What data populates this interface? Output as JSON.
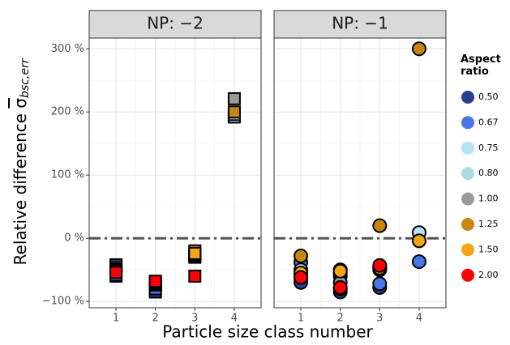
{
  "chart_data": [
    {
      "type": "scatter",
      "title": "NP: −2",
      "marker": "square",
      "xlabel": "Particle size class number",
      "ylabel": "Relative difference ",
      "ylabel_symbol": "σ",
      "ylabel_subscript": "bsc,err",
      "legend_title": "Aspect ratio",
      "legend": "right",
      "x": [
        1,
        2,
        3,
        4
      ],
      "xlim": [
        0.32,
        4.68
      ],
      "xticks": [
        1,
        2,
        3,
        4
      ],
      "ylim": [
        -110,
        317
      ],
      "yticks": [
        {
          "value": -100,
          "label": "−100 %"
        },
        {
          "value": 0,
          "label": "0 %"
        },
        {
          "value": 100,
          "label": "100 %"
        },
        {
          "value": 200,
          "label": "200 %"
        },
        {
          "value": 300,
          "label": "300 %"
        }
      ],
      "reference_line": 0,
      "grid": true,
      "series": [
        {
          "name": "0.50",
          "color": "#2b3f8f",
          "values": [
            -60,
            -85,
            -30,
            null
          ]
        },
        {
          "name": "0.67",
          "color": "#4a74e8",
          "values": [
            -58,
            -80,
            -28,
            null
          ]
        },
        {
          "name": "0.75",
          "color": "#b9e0f7",
          "values": [
            -42,
            -70,
            -28,
            192
          ]
        },
        {
          "name": "0.80",
          "color": "#a9dbe3",
          "values": [
            -45,
            -72,
            -27,
            196
          ]
        },
        {
          "name": "1.00",
          "color": "#999999",
          "values": [
            -48,
            -74,
            -26,
            221
          ]
        },
        {
          "name": "1.25",
          "color": "#c8860f",
          "values": [
            -50,
            -72,
            -20,
            200
          ]
        },
        {
          "name": "1.50",
          "color": "#f5a516",
          "values": [
            -52,
            -70,
            -24,
            null
          ]
        },
        {
          "name": "2.00",
          "color": "#ff0000",
          "values": [
            -54,
            -68,
            -60,
            null
          ]
        }
      ]
    },
    {
      "type": "scatter",
      "title": "NP: −1",
      "marker": "circle",
      "x": [
        1,
        2,
        3,
        4
      ],
      "xlim": [
        0.32,
        4.68
      ],
      "xticks": [
        1,
        2,
        3,
        4
      ],
      "ylim": [
        -110,
        317
      ],
      "yticks": [
        {
          "value": -100,
          "label": "−100 %"
        },
        {
          "value": 0,
          "label": "0 %"
        },
        {
          "value": 100,
          "label": "100 %"
        },
        {
          "value": 200,
          "label": "200 %"
        },
        {
          "value": 300,
          "label": "300 %"
        }
      ],
      "reference_line": 0,
      "grid": true,
      "series": [
        {
          "name": "0.50",
          "color": "#2b3f8f",
          "values": [
            -70,
            -85,
            -78,
            null
          ]
        },
        {
          "name": "0.67",
          "color": "#4a74e8",
          "values": [
            -38,
            -80,
            -72,
            -37
          ]
        },
        {
          "name": "0.75",
          "color": "#b9e0f7",
          "values": [
            -50,
            -60,
            -50,
            9
          ]
        },
        {
          "name": "0.80",
          "color": "#a9dbe3",
          "values": [
            -60,
            -55,
            -48,
            null
          ]
        },
        {
          "name": "1.00",
          "color": "#999999",
          "values": [
            -62,
            -70,
            -45,
            null
          ]
        },
        {
          "name": "1.25",
          "color": "#c8860f",
          "values": [
            -28,
            -50,
            20,
            300
          ]
        },
        {
          "name": "1.50",
          "color": "#f5a516",
          "values": [
            -55,
            -52,
            -47,
            -4
          ]
        },
        {
          "name": "2.00",
          "color": "#ff0000",
          "values": [
            -62,
            -78,
            -43,
            null
          ]
        }
      ]
    }
  ]
}
